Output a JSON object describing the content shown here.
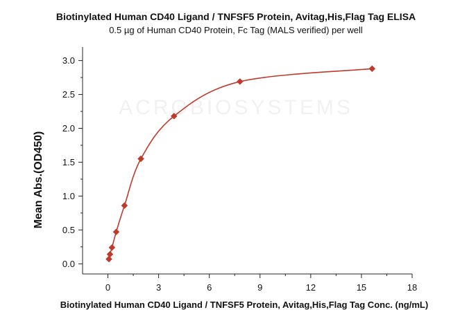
{
  "chart_data": {
    "type": "scatter",
    "title": "Biotinylated Human CD40 Ligand / TNFSF5 Protein, Avitag,His,Flag Tag ELISA",
    "subtitle": "0.5 µg of Human CD40 Protein, Fc Tag (MALS verified) per well",
    "xlabel": "Biotinylated Human CD40 Ligand / TNFSF5 Protein, Avitag,His,Flag Tag Conc. (ng/mL)",
    "ylabel": "Mean Abs.(OD450)",
    "xlim": [
      -1.5,
      18
    ],
    "ylim": [
      -0.15,
      3.2
    ],
    "xticks": [
      0,
      3,
      6,
      9,
      12,
      15,
      18
    ],
    "yticks": [
      0.0,
      0.5,
      1.0,
      1.5,
      2.0,
      2.5,
      3.0
    ],
    "ytick_labels": [
      "0.0",
      "0.5",
      "1.0",
      "1.5",
      "2.0",
      "2.5",
      "3.0"
    ],
    "grid": false,
    "series": [
      {
        "marker": "diamond",
        "color": "#c0392b",
        "x": [
          0.06,
          0.12,
          0.24,
          0.49,
          0.98,
          1.95,
          3.91,
          7.81,
          15.63
        ],
        "y": [
          0.07,
          0.14,
          0.24,
          0.47,
          0.86,
          1.55,
          2.18,
          2.69,
          2.88
        ]
      }
    ],
    "fit_curve": {
      "type": "4PL",
      "color": "#c0392b"
    },
    "watermark": "ACROBIOSYSTEMS"
  }
}
